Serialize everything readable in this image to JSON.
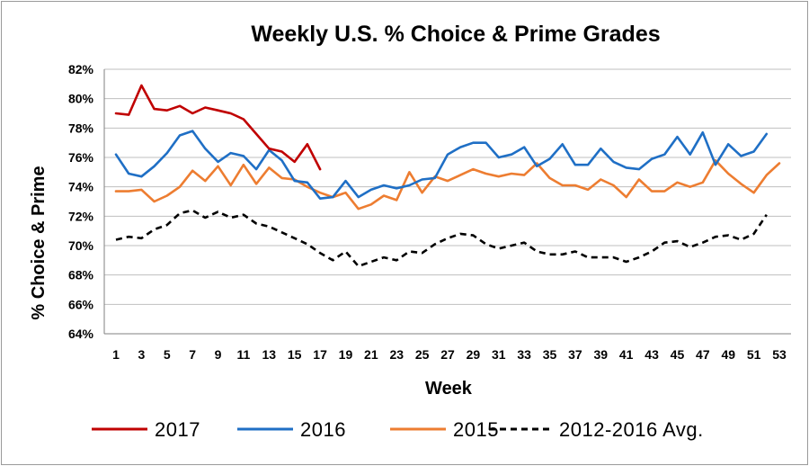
{
  "chart_data": {
    "type": "line",
    "title": "Weekly U.S. % Choice & Prime Grades",
    "xlabel": "Week",
    "ylabel": "% Choice & Prime",
    "xlim": [
      1,
      53
    ],
    "ylim": [
      64,
      82
    ],
    "x_ticks": [
      "1",
      "3",
      "5",
      "7",
      "9",
      "11",
      "13",
      "15",
      "17",
      "19",
      "21",
      "23",
      "25",
      "27",
      "29",
      "31",
      "33",
      "35",
      "37",
      "39",
      "41",
      "43",
      "45",
      "47",
      "49",
      "51",
      "53"
    ],
    "y_ticks": [
      "64%",
      "66%",
      "68%",
      "70%",
      "72%",
      "74%",
      "76%",
      "78%",
      "80%",
      "82%"
    ],
    "grid": "horizontal",
    "legend_position": "bottom",
    "series": [
      {
        "name": "2017",
        "color": "#c00000",
        "style": "solid",
        "x": [
          1,
          2,
          3,
          4,
          5,
          6,
          7,
          8,
          9,
          10,
          11,
          12,
          13,
          14,
          15,
          16,
          17
        ],
        "values": [
          79.0,
          78.9,
          80.9,
          79.3,
          79.2,
          79.5,
          79.0,
          79.4,
          79.2,
          79.0,
          78.6,
          77.6,
          76.6,
          76.4,
          75.7,
          76.9,
          75.2
        ]
      },
      {
        "name": "2016",
        "color": "#1f6fc5",
        "style": "solid",
        "x": [
          1,
          2,
          3,
          4,
          5,
          6,
          7,
          8,
          9,
          10,
          11,
          12,
          13,
          14,
          15,
          16,
          17,
          18,
          19,
          20,
          21,
          22,
          23,
          24,
          25,
          26,
          27,
          28,
          29,
          30,
          31,
          32,
          33,
          34,
          35,
          36,
          37,
          38,
          39,
          40,
          41,
          42,
          43,
          44,
          45,
          46,
          47,
          48,
          49,
          50,
          51,
          52
        ],
        "values": [
          76.2,
          74.9,
          74.7,
          75.4,
          76.3,
          77.5,
          77.8,
          76.6,
          75.7,
          76.3,
          76.1,
          75.2,
          76.5,
          75.8,
          74.4,
          74.3,
          73.2,
          73.3,
          74.4,
          73.3,
          73.8,
          74.1,
          73.9,
          74.1,
          74.5,
          74.6,
          76.2,
          76.7,
          77.0,
          77.0,
          76.0,
          76.2,
          76.7,
          75.4,
          75.9,
          76.9,
          75.5,
          75.5,
          76.6,
          75.7,
          75.3,
          75.2,
          75.9,
          76.2,
          77.4,
          76.2,
          77.7,
          75.5,
          76.9,
          76.1,
          76.4,
          77.6
        ]
      },
      {
        "name": "2015",
        "color": "#ed7d31",
        "style": "solid",
        "x": [
          1,
          2,
          3,
          4,
          5,
          6,
          7,
          8,
          9,
          10,
          11,
          12,
          13,
          14,
          15,
          16,
          17,
          18,
          19,
          20,
          21,
          22,
          23,
          24,
          25,
          26,
          27,
          28,
          29,
          30,
          31,
          32,
          33,
          34,
          35,
          36,
          37,
          38,
          39,
          40,
          41,
          42,
          43,
          44,
          45,
          46,
          47,
          48,
          49,
          50,
          51,
          52,
          53
        ],
        "values": [
          73.7,
          73.7,
          73.8,
          73.0,
          73.4,
          74.0,
          75.1,
          74.4,
          75.4,
          74.1,
          75.5,
          74.2,
          75.3,
          74.6,
          74.5,
          74.0,
          73.6,
          73.3,
          73.6,
          72.5,
          72.8,
          73.4,
          73.1,
          75.0,
          73.6,
          74.7,
          74.4,
          74.8,
          75.2,
          74.9,
          74.7,
          74.9,
          74.8,
          75.6,
          74.6,
          74.1,
          74.1,
          73.8,
          74.5,
          74.1,
          73.3,
          74.5,
          73.7,
          73.7,
          74.3,
          74.0,
          74.3,
          75.8,
          74.9,
          74.2,
          73.6,
          74.8,
          75.6
        ]
      },
      {
        "name": "2012-2016 Avg.",
        "color": "#000000",
        "style": "dashed",
        "x": [
          1,
          2,
          3,
          4,
          5,
          6,
          7,
          8,
          9,
          10,
          11,
          12,
          13,
          14,
          15,
          16,
          17,
          18,
          19,
          20,
          21,
          22,
          23,
          24,
          25,
          26,
          27,
          28,
          29,
          30,
          31,
          32,
          33,
          34,
          35,
          36,
          37,
          38,
          39,
          40,
          41,
          42,
          43,
          44,
          45,
          46,
          47,
          48,
          49,
          50,
          51,
          52
        ],
        "values": [
          70.4,
          70.6,
          70.5,
          71.1,
          71.4,
          72.2,
          72.4,
          71.9,
          72.3,
          71.9,
          72.1,
          71.5,
          71.3,
          70.9,
          70.5,
          70.1,
          69.5,
          69.0,
          69.6,
          68.6,
          68.9,
          69.2,
          69.0,
          69.6,
          69.5,
          70.1,
          70.5,
          70.8,
          70.7,
          70.1,
          69.8,
          70.0,
          70.2,
          69.6,
          69.4,
          69.4,
          69.6,
          69.2,
          69.2,
          69.2,
          68.9,
          69.2,
          69.6,
          70.2,
          70.3,
          69.9,
          70.2,
          70.6,
          70.7,
          70.4,
          70.8,
          72.1
        ]
      }
    ]
  }
}
